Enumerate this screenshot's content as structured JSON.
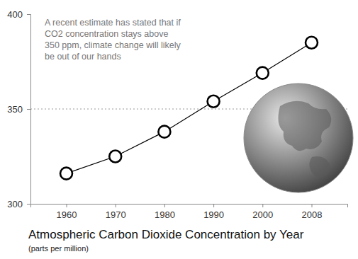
{
  "chart_data": {
    "type": "line",
    "title": "Atmospheric Carbon Dioxide Concentration by Year",
    "subtitle": "(parts per million)",
    "annotation": [
      "A recent estimate has stated that if",
      "CO2 concentration stays above",
      "350 ppm, climate change will likely",
      "be out of our hands"
    ],
    "categories": [
      "1960",
      "1970",
      "1980",
      "1990",
      "2000",
      "2008"
    ],
    "values": [
      316,
      325,
      338,
      354,
      369,
      385
    ],
    "color": "#000000",
    "marker": "circle",
    "hline": 350,
    "ylim": [
      300,
      400
    ],
    "yticks": [
      300,
      350,
      400
    ],
    "grid": false
  }
}
